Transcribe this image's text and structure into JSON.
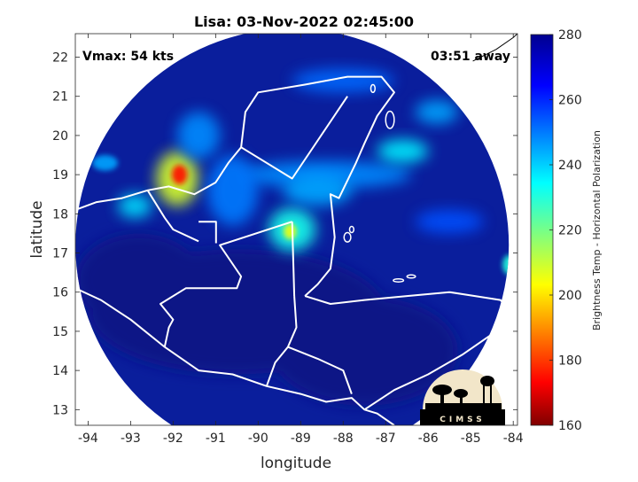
{
  "title": "Lisa: 03-Nov-2022 02:45:00",
  "vmax_label": "Vmax: 54 kts",
  "time_away_label": "03:51 away",
  "xlabel": "longitude",
  "ylabel": "latitude",
  "colorbar_label": "Brightness Temp - Horizontal Polarization",
  "logo_text": "CIMSS",
  "colors": {
    "ocean_background": "#0a1e9c",
    "deep_blue": "#0b1386",
    "coastline": "#ffffff",
    "axis": "#262626"
  },
  "map_extent": {
    "lon": [
      -94.3,
      -83.9
    ],
    "lat": [
      12.6,
      22.6
    ]
  },
  "xticks": [
    {
      "value": -94,
      "label": "-94"
    },
    {
      "value": -93,
      "label": "-93"
    },
    {
      "value": -92,
      "label": "-92"
    },
    {
      "value": -91,
      "label": "-91"
    },
    {
      "value": -90,
      "label": "-90"
    },
    {
      "value": -89,
      "label": "-89"
    },
    {
      "value": -88,
      "label": "-88"
    },
    {
      "value": -87,
      "label": "-87"
    },
    {
      "value": -86,
      "label": "-86"
    },
    {
      "value": -85,
      "label": "-85"
    },
    {
      "value": -84,
      "label": "-84"
    }
  ],
  "yticks": [
    {
      "value": 13,
      "label": "13"
    },
    {
      "value": 14,
      "label": "14"
    },
    {
      "value": 15,
      "label": "15"
    },
    {
      "value": 16,
      "label": "16"
    },
    {
      "value": 17,
      "label": "17"
    },
    {
      "value": 18,
      "label": "18"
    },
    {
      "value": 19,
      "label": "19"
    },
    {
      "value": 20,
      "label": "20"
    },
    {
      "value": 21,
      "label": "21"
    },
    {
      "value": 22,
      "label": "22"
    }
  ],
  "colorbar": {
    "range": [
      160,
      280
    ],
    "ticks": [
      {
        "value": 160,
        "label": "160"
      },
      {
        "value": 180,
        "label": "180"
      },
      {
        "value": 200,
        "label": "200"
      },
      {
        "value": 220,
        "label": "220"
      },
      {
        "value": 240,
        "label": "240"
      },
      {
        "value": 260,
        "label": "260"
      },
      {
        "value": 280,
        "label": "280"
      }
    ]
  },
  "swath": {
    "center": [
      -89.2,
      17.2
    ],
    "radius_deg": 5.2
  },
  "features": [
    {
      "lon": -91.9,
      "lat": 18.9,
      "rx": 0.5,
      "ry": 0.7,
      "value": 208
    },
    {
      "lon": -91.85,
      "lat": 19.0,
      "rx": 0.18,
      "ry": 0.25,
      "value": 175
    },
    {
      "lon": -89.2,
      "lat": 17.6,
      "rx": 0.55,
      "ry": 0.55,
      "value": 232
    },
    {
      "lon": -89.25,
      "lat": 17.55,
      "rx": 0.15,
      "ry": 0.2,
      "value": 205
    },
    {
      "lon": -88.4,
      "lat": 19.0,
      "rx": 2.0,
      "ry": 0.35,
      "value": 248
    },
    {
      "lon": -86.6,
      "lat": 19.6,
      "rx": 0.6,
      "ry": 0.3,
      "value": 236
    },
    {
      "lon": -90.6,
      "lat": 18.6,
      "rx": 0.6,
      "ry": 0.9,
      "value": 250
    },
    {
      "lon": -92.9,
      "lat": 18.2,
      "rx": 0.4,
      "ry": 0.3,
      "value": 238
    },
    {
      "lon": -93.6,
      "lat": 19.3,
      "rx": 0.3,
      "ry": 0.2,
      "value": 245
    },
    {
      "lon": -85.8,
      "lat": 20.6,
      "rx": 0.5,
      "ry": 0.3,
      "value": 245
    },
    {
      "lon": -88.6,
      "lat": 18.6,
      "rx": 0.8,
      "ry": 0.4,
      "value": 245
    },
    {
      "lon": -88.0,
      "lat": 21.4,
      "rx": 1.2,
      "ry": 0.3,
      "value": 252
    },
    {
      "lon": -91.4,
      "lat": 20.0,
      "rx": 0.5,
      "ry": 0.6,
      "value": 248
    },
    {
      "lon": -84.1,
      "lat": 16.7,
      "rx": 0.15,
      "ry": 0.25,
      "value": 230
    },
    {
      "lon": -85.5,
      "lat": 17.8,
      "rx": 0.8,
      "ry": 0.3,
      "value": 255
    }
  ],
  "land_dark": [
    {
      "lon": -90.5,
      "lat": 15.5,
      "rx": 3.5,
      "ry": 1.6
    },
    {
      "lon": -87.5,
      "lat": 14.5,
      "rx": 2.2,
      "ry": 1.4
    },
    {
      "lon": -92.8,
      "lat": 16.3,
      "rx": 1.5,
      "ry": 1.2
    }
  ],
  "coastlines": [
    {
      "name": "yucatan",
      "points": [
        [
          -90.4,
          19.7
        ],
        [
          -90.3,
          20.6
        ],
        [
          -90.0,
          21.1
        ],
        [
          -88.9,
          21.3
        ],
        [
          -87.9,
          21.5
        ],
        [
          -87.1,
          21.5
        ],
        [
          -86.8,
          21.1
        ],
        [
          -87.2,
          20.5
        ],
        [
          -87.5,
          19.8
        ],
        [
          -87.7,
          19.3
        ],
        [
          -88.1,
          18.4
        ],
        [
          -88.3,
          18.5
        ],
        [
          -88.2,
          17.4
        ],
        [
          -88.3,
          16.6
        ],
        [
          -88.6,
          16.2
        ],
        [
          -88.9,
          15.9
        ]
      ]
    },
    {
      "name": "gulf-coast",
      "points": [
        [
          -94.3,
          18.1
        ],
        [
          -93.8,
          18.3
        ],
        [
          -93.2,
          18.4
        ],
        [
          -92.6,
          18.6
        ],
        [
          -92.1,
          18.7
        ],
        [
          -91.5,
          18.5
        ],
        [
          -91.0,
          18.8
        ],
        [
          -90.7,
          19.3
        ],
        [
          -90.4,
          19.7
        ]
      ]
    },
    {
      "name": "honduras-coast",
      "points": [
        [
          -88.9,
          15.9
        ],
        [
          -88.3,
          15.7
        ],
        [
          -87.5,
          15.8
        ],
        [
          -86.5,
          15.9
        ],
        [
          -85.5,
          16.0
        ],
        [
          -84.9,
          15.9
        ],
        [
          -84.3,
          15.8
        ],
        [
          -83.9,
          15.3
        ]
      ]
    },
    {
      "name": "pacific-coast",
      "points": [
        [
          -94.3,
          16.1
        ],
        [
          -93.7,
          15.8
        ],
        [
          -93.0,
          15.3
        ],
        [
          -92.2,
          14.6
        ],
        [
          -91.4,
          14.0
        ],
        [
          -90.6,
          13.9
        ],
        [
          -89.8,
          13.6
        ],
        [
          -89.0,
          13.4
        ],
        [
          -88.4,
          13.2
        ],
        [
          -87.8,
          13.3
        ],
        [
          -87.5,
          13.0
        ],
        [
          -87.2,
          12.9
        ],
        [
          -86.8,
          12.6
        ]
      ]
    },
    {
      "name": "mx-gt-border",
      "points": [
        [
          -92.2,
          14.6
        ],
        [
          -92.1,
          15.1
        ],
        [
          -92.0,
          15.3
        ],
        [
          -92.3,
          15.7
        ],
        [
          -91.7,
          16.1
        ],
        [
          -90.5,
          16.1
        ],
        [
          -90.4,
          16.4
        ],
        [
          -90.9,
          17.2
        ],
        [
          -89.2,
          17.8
        ]
      ]
    },
    {
      "name": "mx-border-north",
      "points": [
        [
          -91.4,
          17.8
        ],
        [
          -90.99,
          17.8
        ],
        [
          -90.99,
          17.25
        ]
      ]
    },
    {
      "name": "campeche-yucatan-border",
      "points": [
        [
          -90.4,
          19.7
        ],
        [
          -89.2,
          18.9
        ],
        [
          -87.9,
          21.0
        ]
      ]
    },
    {
      "name": "gt-bz-border",
      "points": [
        [
          -89.2,
          17.8
        ],
        [
          -89.15,
          15.9
        ]
      ]
    },
    {
      "name": "gt-hn-border",
      "points": [
        [
          -89.15,
          15.9
        ],
        [
          -89.1,
          15.1
        ],
        [
          -89.3,
          14.6
        ],
        [
          -89.6,
          14.2
        ],
        [
          -89.8,
          13.6
        ]
      ]
    },
    {
      "name": "hn-sv-border",
      "points": [
        [
          -89.3,
          14.6
        ],
        [
          -88.6,
          14.3
        ],
        [
          -88.0,
          14.0
        ],
        [
          -87.8,
          13.4
        ]
      ]
    },
    {
      "name": "hn-ni-border",
      "points": [
        [
          -87.5,
          13.0
        ],
        [
          -86.8,
          13.5
        ],
        [
          -86.0,
          13.9
        ],
        [
          -85.2,
          14.4
        ],
        [
          -84.4,
          15.0
        ],
        [
          -83.9,
          15.0
        ]
      ]
    },
    {
      "name": "gulf-border",
      "points": [
        [
          -92.6,
          18.6
        ],
        [
          -92.2,
          17.9
        ],
        [
          -92.0,
          17.6
        ],
        [
          -91.4,
          17.3
        ]
      ]
    }
  ],
  "islands": [
    {
      "lon": -86.9,
      "lat": 20.4,
      "rx": 0.1,
      "ry": 0.22
    },
    {
      "lon": -87.3,
      "lat": 21.2,
      "rx": 0.05,
      "ry": 0.1
    },
    {
      "lon": -86.7,
      "lat": 16.3,
      "rx": 0.12,
      "ry": 0.04
    },
    {
      "lon": -86.4,
      "lat": 16.4,
      "rx": 0.1,
      "ry": 0.04
    },
    {
      "lon": -87.9,
      "lat": 17.4,
      "rx": 0.08,
      "ry": 0.12
    },
    {
      "lon": -87.8,
      "lat": 17.6,
      "rx": 0.05,
      "ry": 0.08
    }
  ],
  "cuba": [
    [
      -84.95,
      21.9
    ],
    [
      -84.4,
      22.2
    ],
    [
      -84.0,
      22.5
    ],
    [
      -83.9,
      22.6
    ]
  ]
}
